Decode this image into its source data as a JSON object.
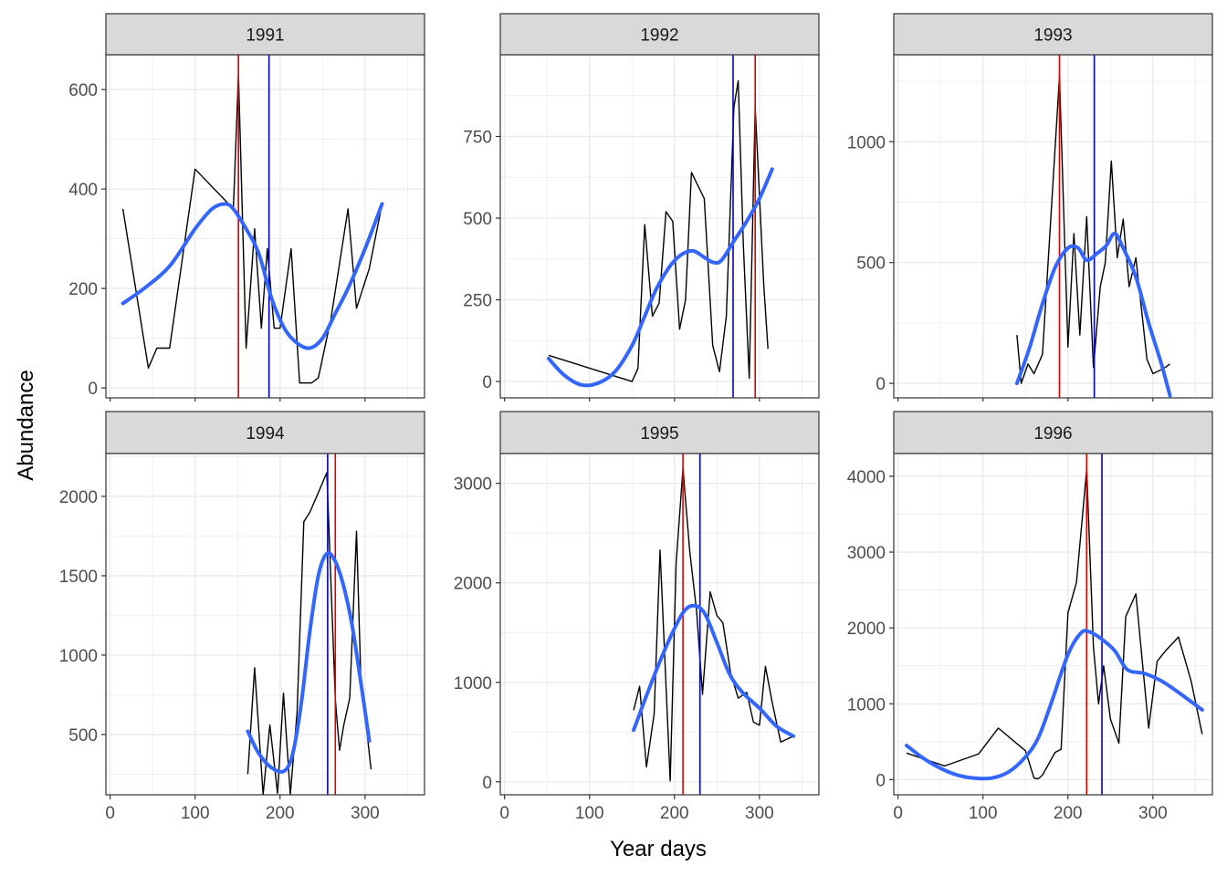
{
  "chart_data": {
    "type": "line",
    "xlabel": "Year days",
    "ylabel": "Abundance",
    "grid": true,
    "colors": {
      "observed": "#000000",
      "smooth": "#3366FF",
      "vline_red": "#E00000",
      "vline_blue": "#0000CC",
      "strip_fill": "#D9D9D9",
      "grid": "#EBEBEB",
      "axis_text": "#4D4D4D"
    },
    "xlim": [
      -5,
      370
    ],
    "xticks": [
      0,
      100,
      200,
      300
    ],
    "panels": [
      {
        "title": "1991",
        "ylim": [
          -20,
          670
        ],
        "yticks": [
          0,
          200,
          400,
          600
        ],
        "vline_red": 151,
        "vline_blue": 187,
        "observed": {
          "x": [
            15,
            45,
            55,
            70,
            100,
            145,
            151,
            160,
            170,
            178,
            185,
            193,
            200,
            213,
            223,
            237,
            245,
            260,
            280,
            290,
            305,
            320
          ],
          "y": [
            360,
            40,
            80,
            80,
            440,
            360,
            630,
            80,
            320,
            120,
            280,
            120,
            120,
            280,
            10,
            10,
            20,
            140,
            360,
            160,
            240,
            370
          ]
        },
        "smooth": {
          "x": [
            15,
            40,
            70,
            100,
            120,
            135,
            145,
            160,
            175,
            190,
            205,
            220,
            235,
            250,
            265,
            280,
            300,
            320
          ],
          "y": [
            170,
            200,
            245,
            320,
            360,
            370,
            360,
            320,
            270,
            180,
            120,
            90,
            80,
            100,
            150,
            200,
            280,
            370
          ]
        }
      },
      {
        "title": "1992",
        "ylim": [
          -50,
          1000
        ],
        "yticks": [
          0,
          250,
          500,
          750
        ],
        "vline_red": 295,
        "vline_blue": 269,
        "observed": {
          "x": [
            52,
            150,
            157,
            165,
            174,
            182,
            190,
            198,
            206,
            213,
            220,
            235,
            245,
            253,
            261,
            270,
            275,
            281,
            288,
            295,
            305,
            310
          ],
          "y": [
            80,
            0,
            40,
            480,
            200,
            240,
            520,
            490,
            160,
            250,
            640,
            560,
            110,
            30,
            200,
            840,
            920,
            420,
            10,
            840,
            300,
            100
          ]
        },
        "smooth": {
          "x": [
            52,
            70,
            90,
            110,
            130,
            150,
            165,
            180,
            200,
            220,
            235,
            245,
            255,
            270,
            285,
            300,
            315
          ],
          "y": [
            70,
            20,
            -10,
            -5,
            30,
            110,
            200,
            290,
            370,
            400,
            380,
            365,
            370,
            430,
            490,
            560,
            650
          ]
        }
      },
      {
        "title": "1993",
        "ylim": [
          -60,
          1360
        ],
        "yticks": [
          0,
          500,
          1000
        ],
        "vline_red": 190,
        "vline_blue": 231,
        "observed": {
          "x": [
            140,
            145,
            153,
            160,
            170,
            190,
            200,
            207,
            214,
            222,
            230,
            238,
            244,
            251,
            258,
            265,
            272,
            280,
            293,
            300,
            312,
            320
          ],
          "y": [
            200,
            0,
            80,
            40,
            120,
            1270,
            150,
            620,
            200,
            690,
            65,
            400,
            500,
            920,
            520,
            680,
            400,
            520,
            100,
            40,
            60,
            80
          ]
        },
        "smooth": {
          "x": [
            140,
            155,
            170,
            185,
            200,
            212,
            222,
            235,
            245,
            255,
            265,
            280,
            295,
            310,
            320
          ],
          "y": [
            0,
            150,
            330,
            480,
            560,
            560,
            510,
            540,
            570,
            620,
            560,
            440,
            250,
            80,
            -50
          ]
        }
      },
      {
        "title": "1994",
        "ylim": [
          120,
          2270
        ],
        "yticks": [
          500,
          1000,
          1500,
          2000
        ],
        "vline_red": 265,
        "vline_blue": 256,
        "observed": {
          "x": [
            162,
            170,
            180,
            188,
            197,
            204,
            212,
            220,
            228,
            235,
            244,
            255,
            265,
            270,
            275,
            282,
            290,
            295,
            303,
            307
          ],
          "y": [
            250,
            920,
            120,
            560,
            130,
            760,
            120,
            640,
            1840,
            1900,
            2010,
            2150,
            720,
            400,
            560,
            730,
            1780,
            860,
            480,
            280
          ]
        },
        "smooth": {
          "x": [
            162,
            175,
            190,
            205,
            215,
            225,
            235,
            245,
            255,
            265,
            275,
            285,
            295,
            305
          ],
          "y": [
            520,
            380,
            290,
            270,
            380,
            700,
            1150,
            1500,
            1640,
            1590,
            1430,
            1180,
            830,
            460
          ]
        }
      },
      {
        "title": "1995",
        "ylim": [
          -130,
          3300
        ],
        "yticks": [
          0,
          1000,
          2000,
          3000
        ],
        "vline_red": 210,
        "vline_blue": 230,
        "observed": {
          "x": [
            152,
            159,
            167,
            176,
            183,
            195,
            202,
            210,
            218,
            226,
            233,
            242,
            250,
            257,
            266,
            275,
            285,
            293,
            300,
            307,
            315,
            325,
            340
          ],
          "y": [
            720,
            960,
            150,
            680,
            2330,
            10,
            2200,
            3150,
            2320,
            1720,
            880,
            1910,
            1670,
            1600,
            1100,
            840,
            900,
            600,
            570,
            1160,
            800,
            400,
            460
          ]
        },
        "smooth": {
          "x": [
            152,
            165,
            180,
            195,
            210,
            222,
            235,
            250,
            265,
            280,
            300,
            320,
            340
          ],
          "y": [
            520,
            820,
            1150,
            1450,
            1700,
            1770,
            1700,
            1400,
            1080,
            900,
            740,
            560,
            460
          ]
        }
      },
      {
        "title": "1996",
        "ylim": [
          -200,
          4300
        ],
        "yticks": [
          0,
          1000,
          2000,
          3000,
          4000
        ],
        "vline_red": 222,
        "vline_blue": 240,
        "observed": {
          "x": [
            10,
            55,
            95,
            118,
            150,
            160,
            165,
            170,
            185,
            192,
            200,
            210,
            222,
            230,
            236,
            242,
            250,
            260,
            268,
            280,
            288,
            295,
            305,
            315,
            330,
            345,
            358
          ],
          "y": [
            350,
            180,
            340,
            680,
            380,
            20,
            10,
            60,
            360,
            400,
            2200,
            2600,
            4090,
            1750,
            1000,
            1500,
            800,
            480,
            2150,
            2450,
            1500,
            680,
            1560,
            1700,
            1880,
            1300,
            600
          ]
        },
        "smooth": {
          "x": [
            10,
            30,
            50,
            70,
            90,
            110,
            130,
            150,
            165,
            180,
            200,
            215,
            225,
            240,
            255,
            270,
            290,
            310,
            330,
            358
          ],
          "y": [
            450,
            280,
            150,
            60,
            20,
            20,
            100,
            300,
            550,
            1000,
            1650,
            1930,
            1950,
            1850,
            1700,
            1450,
            1400,
            1300,
            1150,
            920
          ]
        }
      }
    ]
  }
}
